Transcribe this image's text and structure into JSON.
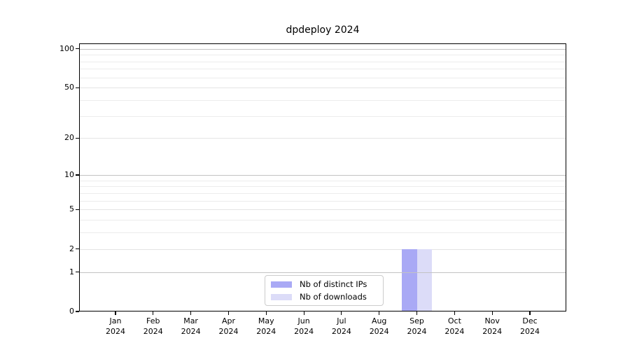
{
  "chart_data": {
    "type": "bar",
    "title": "dpdeploy 2024",
    "categories": [
      "Jan 2024",
      "Feb 2024",
      "Mar 2024",
      "Apr 2024",
      "May 2024",
      "Jun 2024",
      "Jul 2024",
      "Aug 2024",
      "Sep 2024",
      "Oct 2024",
      "Nov 2024",
      "Dec 2024"
    ],
    "series": [
      {
        "name": "Nb of distinct IPs",
        "color": "#a9a9f5",
        "values": [
          0,
          0,
          0,
          0,
          0,
          0,
          0,
          0,
          2,
          0,
          0,
          0
        ]
      },
      {
        "name": "Nb of downloads",
        "color": "#dcdcf8",
        "values": [
          0,
          0,
          0,
          0,
          0,
          0,
          0,
          0,
          2,
          0,
          0,
          0
        ]
      }
    ],
    "xlabel": "",
    "ylabel": "",
    "yscale": "log1p",
    "ylim": [
      0,
      110
    ],
    "yticks": [
      0,
      1,
      2,
      5,
      10,
      20,
      50,
      100
    ],
    "yticks_minor": [
      3,
      4,
      6,
      7,
      8,
      9,
      30,
      40,
      60,
      70,
      80,
      90
    ],
    "grid": "horizontal",
    "legend_position": "inside-bottom-center",
    "colors": {
      "decade_gridline": "#c3c3c3",
      "labeled_minor_gridline": "#e4e4e4",
      "minor_gridline": "#ececec",
      "axis": "#000000",
      "text": "#000000",
      "legend_border": "#cccccc",
      "background": "#ffffff"
    }
  }
}
